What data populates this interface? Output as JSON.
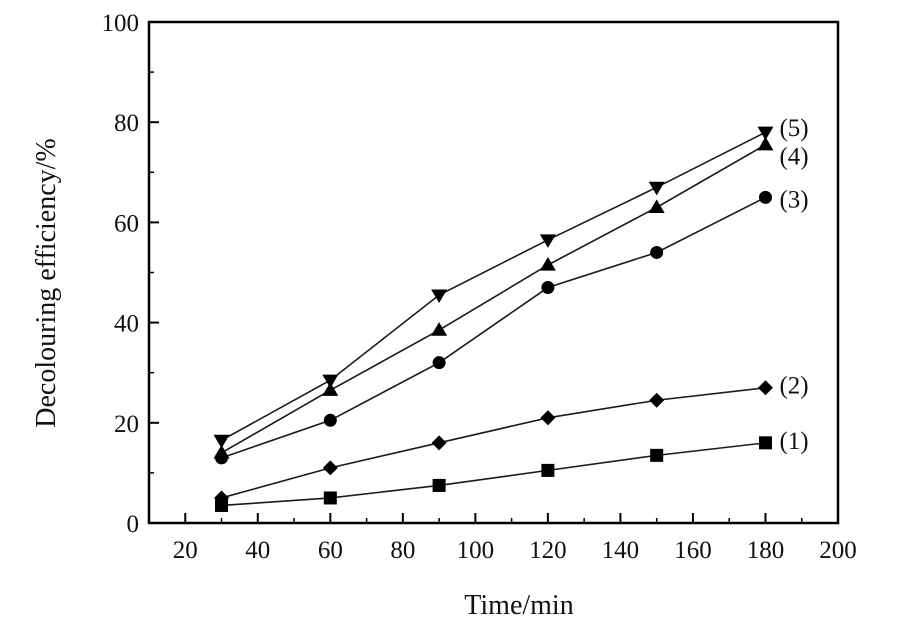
{
  "chart_data": {
    "type": "line",
    "title": "",
    "xlabel": "Time/min",
    "ylabel": "Decolouring efficiency/%",
    "xlim": [
      10,
      200
    ],
    "ylim": [
      0,
      100
    ],
    "xticks": [
      20,
      40,
      60,
      80,
      100,
      120,
      140,
      160,
      180,
      200
    ],
    "yticks": [
      0,
      20,
      40,
      60,
      80,
      100
    ],
    "grid": false,
    "legend": "inline labels at right end of each series",
    "x": [
      30,
      60,
      90,
      120,
      150,
      180
    ],
    "series": [
      {
        "name": "(1)",
        "marker": "square",
        "values": [
          3.5,
          5,
          7.5,
          10.5,
          13.5,
          16
        ]
      },
      {
        "name": "(2)",
        "marker": "diamond",
        "values": [
          5,
          11,
          16,
          21,
          24.5,
          27
        ]
      },
      {
        "name": "(3)",
        "marker": "circle",
        "values": [
          13,
          20.5,
          32,
          47,
          54,
          65
        ]
      },
      {
        "name": "(4)",
        "marker": "triangle-up",
        "values": [
          14,
          26.5,
          38.5,
          51.5,
          63,
          75.5
        ]
      },
      {
        "name": "(5)",
        "marker": "triangle-down",
        "values": [
          16.5,
          28.5,
          45.5,
          56.5,
          67,
          78
        ]
      }
    ],
    "colors": {
      "line": "#1a1a1a",
      "marker": "#000000",
      "axis": "#000000"
    }
  }
}
